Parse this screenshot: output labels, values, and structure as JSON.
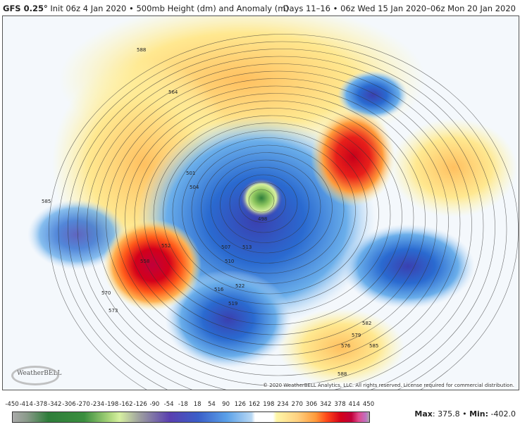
{
  "header": {
    "model": "GFS 0.25°",
    "init_desc": "Init 06z 4 Jan 2020 • 500mb Height (dm) and Anomaly (m)",
    "valid_desc": "Days 11–16 • 06z Wed 15 Jan 2020–06z Mon 20 Jan 2020"
  },
  "map": {
    "copyright": "© 2020 WeatherBELL Analytics, LLC. All rights reserved. License required for commercial distribution.",
    "logo_text": "WeatherBELL",
    "contour_labels": [
      "588",
      "585",
      "564",
      "501",
      "504",
      "498",
      "552",
      "558",
      "570",
      "573",
      "576",
      "579",
      "582",
      "585",
      "588",
      "507",
      "510",
      "513",
      "516",
      "519",
      "522"
    ]
  },
  "colorbar": {
    "ticks": [
      "-450",
      "-414",
      "-378",
      "-342",
      "-306",
      "-270",
      "-234",
      "-198",
      "-162",
      "-126",
      "-90",
      "-54",
      "-18",
      "18",
      "54",
      "90",
      "126",
      "162",
      "198",
      "234",
      "270",
      "306",
      "342",
      "378",
      "414",
      "450"
    ]
  },
  "stats": {
    "max_label": "Max",
    "max_value": "375.8",
    "min_label": "Min:",
    "min_value": "-402.0",
    "separator": "•"
  }
}
